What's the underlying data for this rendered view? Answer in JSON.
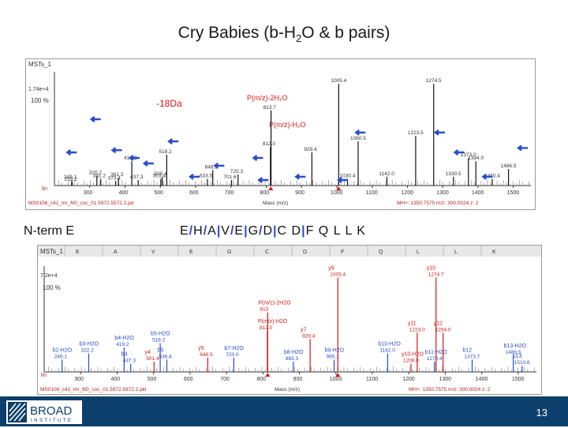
{
  "slide": {
    "title_main": "Cry Babies (b-H",
    "title_sub": "2",
    "title_rest": "O & b pairs)",
    "nterm_label": "N-term E",
    "sequence_parts": [
      "E",
      "/",
      "H",
      "/",
      "A",
      "|",
      "V",
      "/",
      "E",
      "|",
      "G",
      "/",
      "D",
      "|",
      "C D",
      "|",
      "F Q L L K"
    ],
    "page_number": "13",
    "logo_text": "BROAD",
    "logo_subtext": "INSTITUTE"
  },
  "top_spectrum": {
    "header": "MSTs_1",
    "intensity_label": "1.74e+4",
    "percent_label": "100 %",
    "annot_18": "-18Da",
    "annot_pmz_h2o2": "P(m/z)-2H₂O",
    "annot_pmz_h2o": "P(m/z)-H₂O",
    "footer_file": "MS0108_c41_mr_fit0_coc_01.5972.5572.2.pd",
    "footer_mass": "MH+: 1350.7575   m/z: 300.0024   z: 2",
    "x_axis_label": "Mass (m/z)",
    "bottom_left": "lin"
  },
  "bottom_spectrum": {
    "header": "MSTs_1",
    "intensity_label": "7.2e+4",
    "percent_label": "100 %",
    "footer_file": "MS0108_c41_mr_fit0_coc_01.5972.5972.2.pkl",
    "footer_mass": "MH+: 1350.7575   m/z: 300.0024   z: 2",
    "x_axis_label": "Mass (m/z)",
    "bottom_left": "lin",
    "header_letters": [
      "E",
      "A",
      "V",
      "E",
      "G",
      "C",
      "D",
      "F",
      "Q",
      "L",
      "L",
      "K"
    ]
  },
  "chart_data": [
    {
      "type": "bar",
      "title": "",
      "xlabel": "Mass (m/z)",
      "xlim": [
        200,
        1550
      ],
      "x_ticks": [
        300,
        400,
        500,
        600,
        700,
        800,
        900,
        1000,
        1100,
        1200,
        1300,
        1400,
        1500
      ],
      "ylim": [
        0,
        100
      ],
      "peaks": [
        {
          "mz": 249.1,
          "intensity": 5,
          "label": "249.1",
          "color": "#111111"
        },
        {
          "mz": 250.2,
          "intensity": 3,
          "label": "250.2",
          "color": "#111111"
        },
        {
          "mz": 320.2,
          "intensity": 9,
          "label": "320.2",
          "color": "#111111"
        },
        {
          "mz": 331.2,
          "intensity": 6,
          "label": "331.2",
          "color": "#111111"
        },
        {
          "mz": 373.4,
          "intensity": 4,
          "label": "373.4",
          "color": "#111111"
        },
        {
          "mz": 381.3,
          "intensity": 7,
          "label": "381.3",
          "color": "#111111"
        },
        {
          "mz": 419.2,
          "intensity": 22,
          "label": "419.2",
          "color": "#111111"
        },
        {
          "mz": 437.3,
          "intensity": 5,
          "label": "437.3",
          "color": "#111111"
        },
        {
          "mz": 501.4,
          "intensity": 6,
          "label": "501.4",
          "color": "#111111"
        },
        {
          "mz": 505.4,
          "intensity": 8,
          "label": "505.4",
          "color": "#111111"
        },
        {
          "mz": 518.2,
          "intensity": 28,
          "label": "518.2",
          "color": "#111111"
        },
        {
          "mz": 648.5,
          "intensity": 14,
          "label": "648.5",
          "color": "#111111"
        },
        {
          "mz": 633.5,
          "intensity": 6,
          "label": "633.5",
          "color": "#111111"
        },
        {
          "mz": 701.6,
          "intensity": 5,
          "label": "701.6",
          "color": "#111111"
        },
        {
          "mz": 720.3,
          "intensity": 10,
          "label": "720.3",
          "color": "#111111"
        },
        {
          "mz": 813.7,
          "intensity": 68,
          "label": "813.7",
          "color": "#111111"
        },
        {
          "mz": 812.0,
          "intensity": 35,
          "label": "812.0",
          "color": "#111111"
        },
        {
          "mz": 929.4,
          "intensity": 30,
          "label": "929.4",
          "color": "#111111"
        },
        {
          "mz": 1005.4,
          "intensity": 92,
          "label": "1005.4",
          "color": "#111111"
        },
        {
          "mz": 1030.4,
          "intensity": 6,
          "label": "1030.4",
          "color": "#111111"
        },
        {
          "mz": 1060.5,
          "intensity": 40,
          "label": "1060.5",
          "color": "#111111"
        },
        {
          "mz": 1142.0,
          "intensity": 8,
          "label": "1142.0",
          "color": "#111111"
        },
        {
          "mz": 1223.5,
          "intensity": 45,
          "label": "1223.5",
          "color": "#111111"
        },
        {
          "mz": 1274.5,
          "intensity": 92,
          "label": "1274.5",
          "color": "#111111"
        },
        {
          "mz": 1330.5,
          "intensity": 8,
          "label": "1330.5",
          "color": "#111111"
        },
        {
          "mz": 1373.0,
          "intensity": 25,
          "label": "1373.0",
          "color": "#111111"
        },
        {
          "mz": 1394.0,
          "intensity": 22,
          "label": "1394.0",
          "color": "#111111"
        },
        {
          "mz": 1486.5,
          "intensity": 15,
          "label": "1486.5",
          "color": "#111111"
        },
        {
          "mz": 1440.4,
          "intensity": 6,
          "label": "1440.4",
          "color": "#111111"
        }
      ]
    },
    {
      "type": "bar",
      "title": "",
      "xlabel": "Mass (m/z)",
      "xlim": [
        200,
        1550
      ],
      "x_ticks": [
        300,
        400,
        500,
        600,
        700,
        800,
        900,
        1000,
        1100,
        1200,
        1300,
        1400,
        1500
      ],
      "ylim": [
        0,
        100
      ],
      "peaks": [
        {
          "mz": 249.1,
          "intensity": 12,
          "label": "249.1",
          "ion": "b2-H2O",
          "color": "#2a4cc8"
        },
        {
          "mz": 322.2,
          "intensity": 18,
          "label": "322.2",
          "ion": "b3-H2O",
          "color": "#2a4cc8"
        },
        {
          "mz": 419.2,
          "intensity": 24,
          "label": "419.2",
          "ion": "b4-H2O",
          "color": "#2a4cc8"
        },
        {
          "mz": 437.3,
          "intensity": 8,
          "label": "437.3",
          "ion": "b4",
          "color": "#2a4cc8"
        },
        {
          "mz": 501.4,
          "intensity": 10,
          "label": "501.4",
          "ion": "y4",
          "color": "#d01818"
        },
        {
          "mz": 518.2,
          "intensity": 28,
          "label": "518.2",
          "ion": "b5-H2O",
          "color": "#2a4cc8"
        },
        {
          "mz": 536.4,
          "intensity": 12,
          "label": "536.4",
          "ion": "b5",
          "color": "#2a4cc8"
        },
        {
          "mz": 648.5,
          "intensity": 14,
          "label": "648.5",
          "ion": "y5",
          "color": "#d01818"
        },
        {
          "mz": 720.0,
          "intensity": 14,
          "label": "720.0",
          "ion": "b7-H2O",
          "color": "#2a4cc8"
        },
        {
          "mz": 812.0,
          "intensity": 40,
          "label": "812.0",
          "ion": "P(m/z)-H2O",
          "color": "#d01818"
        },
        {
          "mz": 813.0,
          "intensity": 58,
          "label": "813",
          "ion": "P(m/z)-2H2O",
          "color": "#d01818"
        },
        {
          "mz": 883.3,
          "intensity": 10,
          "label": "883.3",
          "ion": "b8-H2O",
          "color": "#2a4cc8"
        },
        {
          "mz": 929.4,
          "intensity": 32,
          "label": "929.4",
          "ion": "y7",
          "color": "#d01818"
        },
        {
          "mz": 995.1,
          "intensity": 12,
          "label": "995.1",
          "ion": "b9-H2O",
          "color": "#2a4cc8"
        },
        {
          "mz": 1005.4,
          "intensity": 92,
          "label": "1005.4",
          "ion": "y9",
          "color": "#d01818"
        },
        {
          "mz": 1142.0,
          "intensity": 18,
          "label": "1142.0",
          "ion": "b10-H2O",
          "color": "#2a4cc8"
        },
        {
          "mz": 1206.0,
          "intensity": 8,
          "label": "1206.0",
          "ion": "y10-H2O",
          "color": "#d01818"
        },
        {
          "mz": 1223.0,
          "intensity": 38,
          "label": "1223.0",
          "ion": "y11",
          "color": "#d01818"
        },
        {
          "mz": 1270.4,
          "intensity": 10,
          "label": "1270.4",
          "ion": "b11-H2O",
          "color": "#2a4cc8"
        },
        {
          "mz": 1274.7,
          "intensity": 92,
          "label": "1274.7",
          "ion": "y10",
          "color": "#d01818"
        },
        {
          "mz": 1294.0,
          "intensity": 38,
          "label": "1294.0",
          "ion": "y12",
          "color": "#d01818"
        },
        {
          "mz": 1373.7,
          "intensity": 12,
          "label": "1373.7",
          "ion": "b12",
          "color": "#2a4cc8"
        },
        {
          "mz": 1486.5,
          "intensity": 16,
          "label": "1486.5",
          "ion": "b13-H2O",
          "color": "#2a4cc8"
        },
        {
          "mz": 1510.6,
          "intensity": 6,
          "label": "1510.6",
          "ion": "b13",
          "color": "#2a4cc8"
        }
      ]
    }
  ]
}
